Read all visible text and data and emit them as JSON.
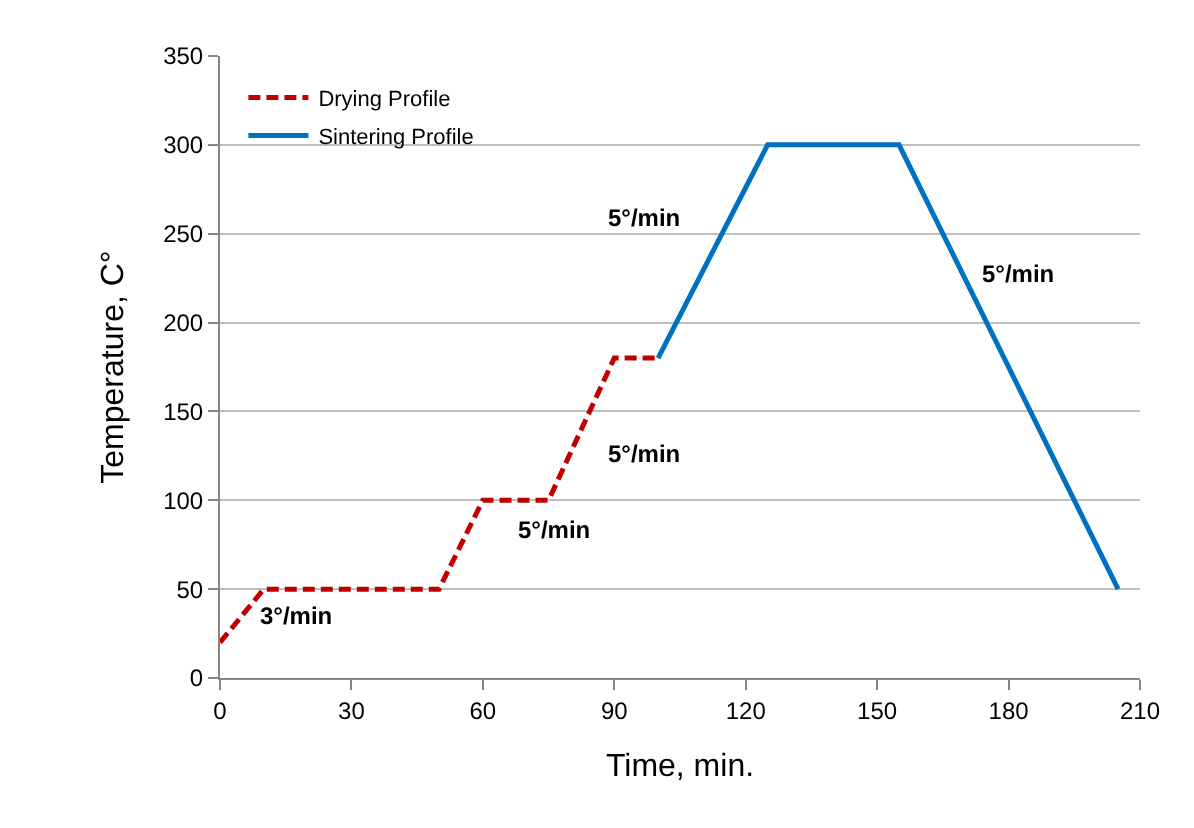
{
  "chart_data": {
    "type": "line",
    "xlabel": "Time, min.",
    "ylabel": "Temperature, C°",
    "series": [
      {
        "name": "Drying Profile",
        "color": "#c00000",
        "line_style": "dashed",
        "x": [
          0,
          10,
          50,
          60,
          75,
          90,
          100
        ],
        "values": [
          20,
          50,
          50,
          100,
          100,
          180,
          180
        ]
      },
      {
        "name": "Sintering Profile",
        "color": "#0070c0",
        "line_style": "solid",
        "x": [
          100,
          125,
          155,
          205
        ],
        "values": [
          180,
          300,
          300,
          50
        ]
      }
    ],
    "xlim": [
      0,
      210
    ],
    "xticks": [
      0,
      30,
      60,
      90,
      120,
      150,
      180,
      210
    ],
    "ylim": [
      0,
      350
    ],
    "yticks": [
      0,
      50,
      100,
      150,
      200,
      250,
      300,
      350
    ],
    "grid": "y",
    "legend": "top left",
    "marker": "none",
    "annotations": [
      "3°/min",
      "5°/min",
      "5°/min",
      "5°/min",
      "5°/min"
    ]
  }
}
